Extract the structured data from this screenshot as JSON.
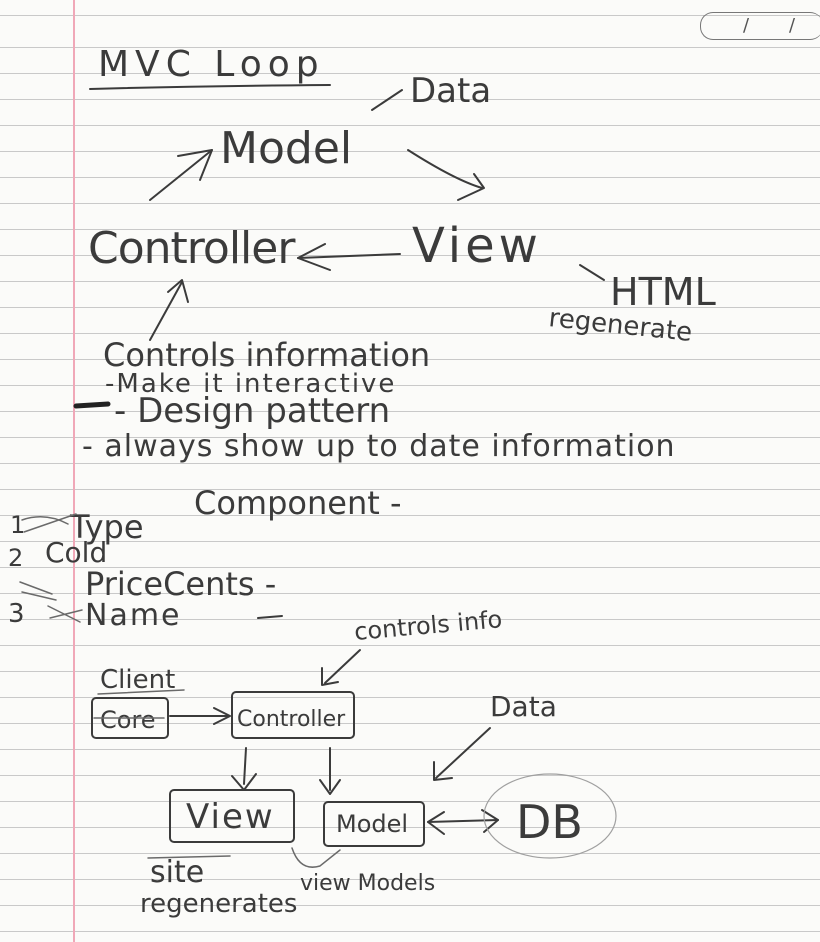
{
  "title": "MVC Loop",
  "diagram": {
    "data": "Data",
    "model": "Model",
    "controller": "Controller",
    "view": "View",
    "html": "HTML",
    "regenerate": "regenerate"
  },
  "notes": [
    "Controls information",
    "-Make it interactive",
    "- Design pattern",
    "- always show up to date information"
  ],
  "component": {
    "heading": "Component -",
    "fields": [
      {
        "number": "1",
        "label": "Type"
      },
      {
        "number": "2",
        "label": "Cold"
      },
      {
        "number": "",
        "label": "PriceCents -"
      },
      {
        "number": "3",
        "label": "Name"
      }
    ]
  },
  "flow": {
    "controls_info": "controls info",
    "client": "Client",
    "core": "Core",
    "controller": "Controller",
    "data": "Data",
    "view": "View",
    "model": "Model",
    "db": "DB",
    "site": "site",
    "regenerates": "regenerates",
    "view_models": "view Models"
  }
}
